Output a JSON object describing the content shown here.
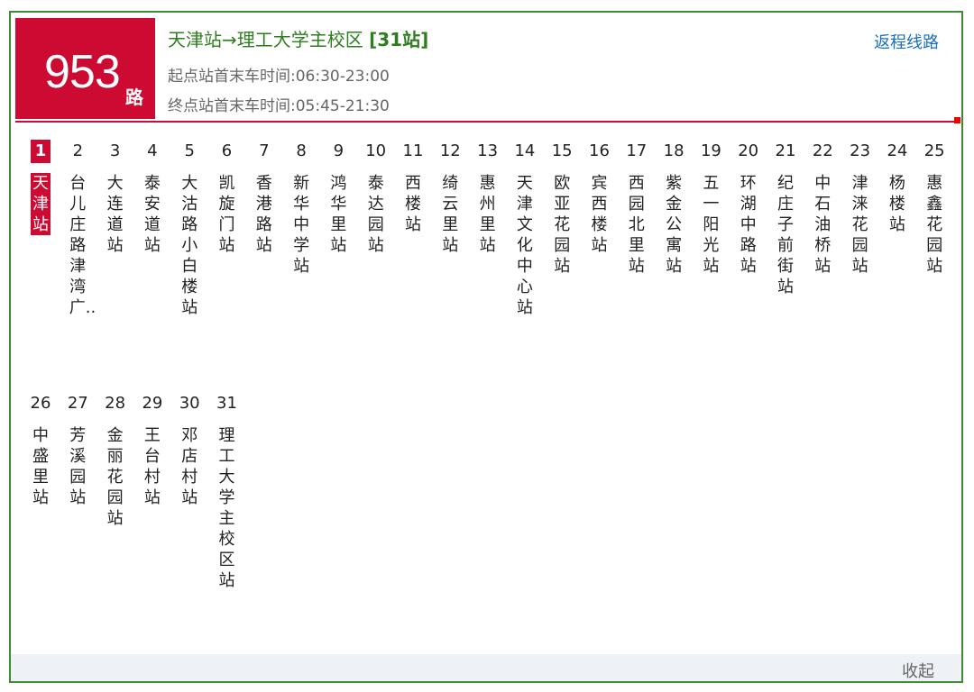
{
  "route": {
    "number": "953",
    "suffix": "路"
  },
  "header": {
    "title": "天津站→理工大学主校区",
    "count": "[31站]",
    "start_times": "起点站首末车时间:06:30-23:00",
    "end_times": "终点站首末车时间:05:45-21:30",
    "return_link": "返程线路"
  },
  "colors": {
    "brand_red": "#cc0a32",
    "title_green": "#2e7d1f",
    "border_green": "#3e8a37",
    "link_blue": "#1a6fbf"
  },
  "current_stop": 1,
  "stops": [
    {
      "n": "1",
      "name": "天津站"
    },
    {
      "n": "2",
      "name": "台儿庄路津湾广.."
    },
    {
      "n": "3",
      "name": "大连道站"
    },
    {
      "n": "4",
      "name": "泰安道站"
    },
    {
      "n": "5",
      "name": "大沽路小白楼站"
    },
    {
      "n": "6",
      "name": "凯旋门站"
    },
    {
      "n": "7",
      "name": "香港路站"
    },
    {
      "n": "8",
      "name": "新华中学站"
    },
    {
      "n": "9",
      "name": "鸿华里站"
    },
    {
      "n": "10",
      "name": "泰达园站"
    },
    {
      "n": "11",
      "name": "西楼站"
    },
    {
      "n": "12",
      "name": "绮云里站"
    },
    {
      "n": "13",
      "name": "惠州里站"
    },
    {
      "n": "14",
      "name": "天津文化中心站"
    },
    {
      "n": "15",
      "name": "欧亚花园站"
    },
    {
      "n": "16",
      "name": "宾西楼站"
    },
    {
      "n": "17",
      "name": "西园北里站"
    },
    {
      "n": "18",
      "name": "紫金公寓站"
    },
    {
      "n": "19",
      "name": "五一阳光站"
    },
    {
      "n": "20",
      "name": "环湖中路站"
    },
    {
      "n": "21",
      "name": "纪庄子前街站"
    },
    {
      "n": "22",
      "name": "中石油桥站"
    },
    {
      "n": "23",
      "name": "津涞花园站"
    },
    {
      "n": "24",
      "name": "杨楼站"
    },
    {
      "n": "25",
      "name": "惠鑫花园站"
    },
    {
      "n": "26",
      "name": "中盛里站"
    },
    {
      "n": "27",
      "name": "芳溪园站"
    },
    {
      "n": "28",
      "name": "金丽花园站"
    },
    {
      "n": "29",
      "name": "王台村站"
    },
    {
      "n": "30",
      "name": "邓店村站"
    },
    {
      "n": "31",
      "name": "理工大学主校区站"
    }
  ],
  "footer": {
    "collapse": "收起"
  }
}
